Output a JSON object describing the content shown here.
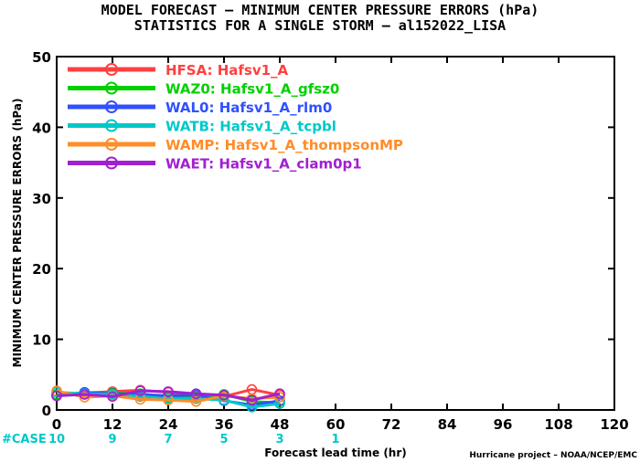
{
  "chart_data": {
    "type": "line",
    "title_line1": "MODEL FORECAST – MINIMUM CENTER PRESSURE ERRORS (hPa)",
    "title_line2": "STATISTICS FOR A SINGLE STORM – al152022_LISA",
    "ylabel": "MINIMUM CENTER PRESSURE ERRORS (hPa)",
    "xlabel": "Forecast lead time (hr)",
    "xlim": [
      0,
      120
    ],
    "ylim": [
      0,
      50
    ],
    "x_ticks": [
      0,
      12,
      24,
      36,
      48,
      60,
      72,
      84,
      96,
      108,
      120
    ],
    "y_ticks": [
      0,
      10,
      20,
      30,
      40,
      50
    ],
    "x": [
      0,
      6,
      12,
      18,
      24,
      30,
      36,
      42,
      48
    ],
    "series": [
      {
        "name": "HFSA: Hafsv1_A",
        "color": "#ff4040",
        "values": [
          2.1,
          2.4,
          2.6,
          2.8,
          2.5,
          1.7,
          1.9,
          2.9,
          2.1
        ]
      },
      {
        "name": "WAZ0: Hafsv1_A_gfsz0",
        "color": "#00d000",
        "values": [
          2.2,
          2.4,
          2.4,
          2.3,
          1.8,
          1.9,
          2.2,
          1.2,
          1.0
        ]
      },
      {
        "name": "WAL0: Hafsv1_A_rlm0",
        "color": "#3050ff",
        "values": [
          2.0,
          2.5,
          2.3,
          2.2,
          2.0,
          2.1,
          1.3,
          0.7,
          1.3
        ]
      },
      {
        "name": "WATB: Hafsv1_A_tcpbl",
        "color": "#00c8c8",
        "values": [
          2.5,
          2.3,
          2.2,
          1.9,
          1.6,
          1.6,
          1.4,
          0.4,
          0.9
        ]
      },
      {
        "name": "WAMP: Hafsv1_A_thompsonMP",
        "color": "#ff8c28",
        "values": [
          2.7,
          1.8,
          2.0,
          1.5,
          1.4,
          1.2,
          2.0,
          1.6,
          1.8
        ]
      },
      {
        "name": "WAET: Hafsv1_A_clam0p1",
        "color": "#a020d0",
        "values": [
          2.0,
          2.2,
          1.9,
          2.7,
          2.6,
          2.3,
          2.1,
          1.4,
          2.3
        ]
      }
    ],
    "legend_placement": "top-left",
    "grid": false
  },
  "cases": {
    "label": "#CASE",
    "items": [
      {
        "x": 0,
        "count": "10"
      },
      {
        "x": 12,
        "count": "9"
      },
      {
        "x": 24,
        "count": "7"
      },
      {
        "x": 36,
        "count": "5"
      },
      {
        "x": 48,
        "count": "3"
      },
      {
        "x": 60,
        "count": "1"
      }
    ]
  },
  "credit": "Hurricane project – NOAA/NCEP/EMC"
}
